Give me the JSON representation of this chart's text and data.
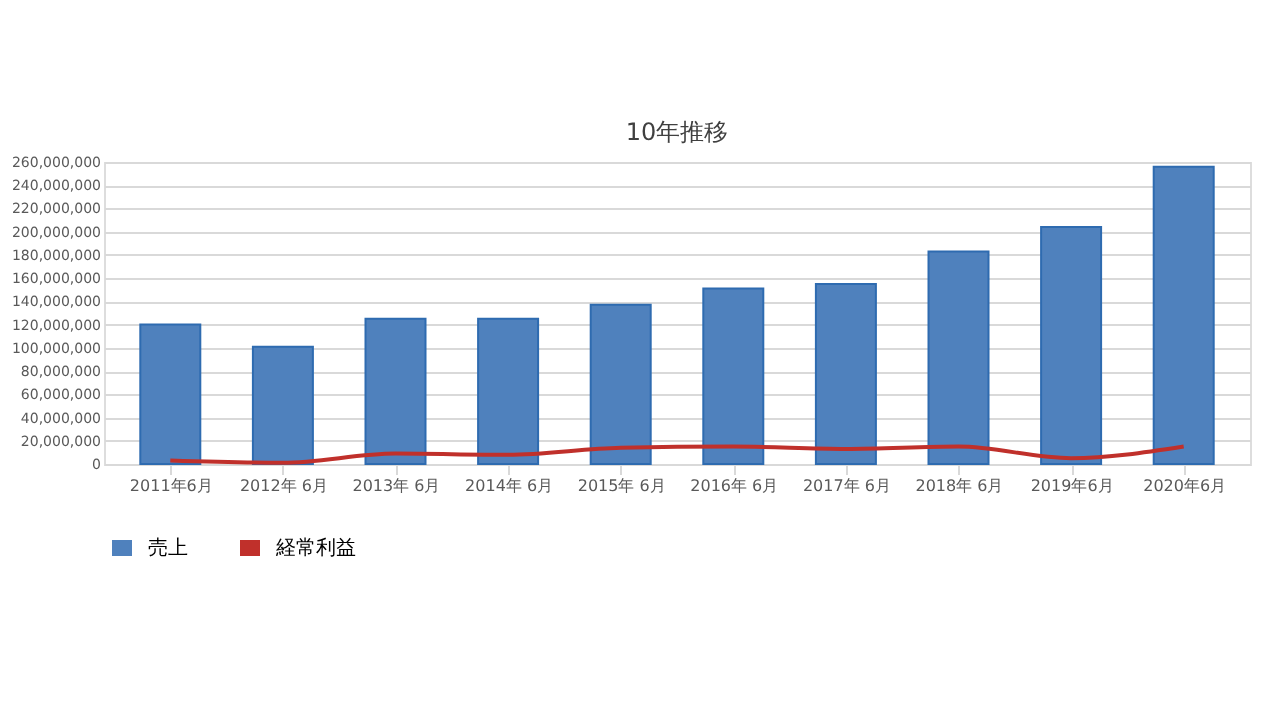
{
  "chart_data": {
    "type": "bar",
    "title": "10年推移",
    "categories": [
      "2011年6月",
      "2012年 6月",
      "2013年 6月",
      "2014年 6月",
      "2015年 6月",
      "2016年 6月",
      "2017年 6月",
      "2018年 6月",
      "2019年6月",
      "2020年6月"
    ],
    "series": [
      {
        "name": "売上",
        "color": "#4f81bd",
        "values": [
          120000000,
          101000000,
          125000000,
          125000000,
          137000000,
          151000000,
          155000000,
          183000000,
          204000000,
          256000000
        ]
      },
      {
        "name": "経常利益",
        "type": "line",
        "color": "#c0302b",
        "values": [
          3000000,
          1000000,
          9000000,
          8000000,
          14000000,
          15000000,
          13000000,
          15000000,
          5000000,
          15000000
        ]
      }
    ],
    "ylim": [
      0,
      260000000
    ],
    "yticks": [
      0,
      {
        "value": 20000000,
        "label": "20,000,000"
      },
      {
        "value": 40000000,
        "label": "40,000,000"
      },
      {
        "value": 60000000,
        "label": "60,000,000"
      },
      {
        "value": 80000000,
        "label": "80,000,000"
      },
      {
        "value": 100000000,
        "label": "100,000,000"
      },
      {
        "value": 120000000,
        "label": "120,000,000"
      },
      {
        "value": 140000000,
        "label": "140,000,000"
      },
      {
        "value": 160000000,
        "label": "160,000,000"
      },
      {
        "value": 180000000,
        "label": "180,000,000"
      },
      {
        "value": 200000000,
        "label": "200,000,000"
      },
      {
        "value": 220000000,
        "label": "220,000,000"
      },
      {
        "value": 240000000,
        "label": "240,000,000"
      },
      {
        "value": 260000000,
        "label": "260,000,000"
      }
    ],
    "grid": "y",
    "legend": "bottom",
    "marker": "none",
    "line_style": "solid"
  }
}
